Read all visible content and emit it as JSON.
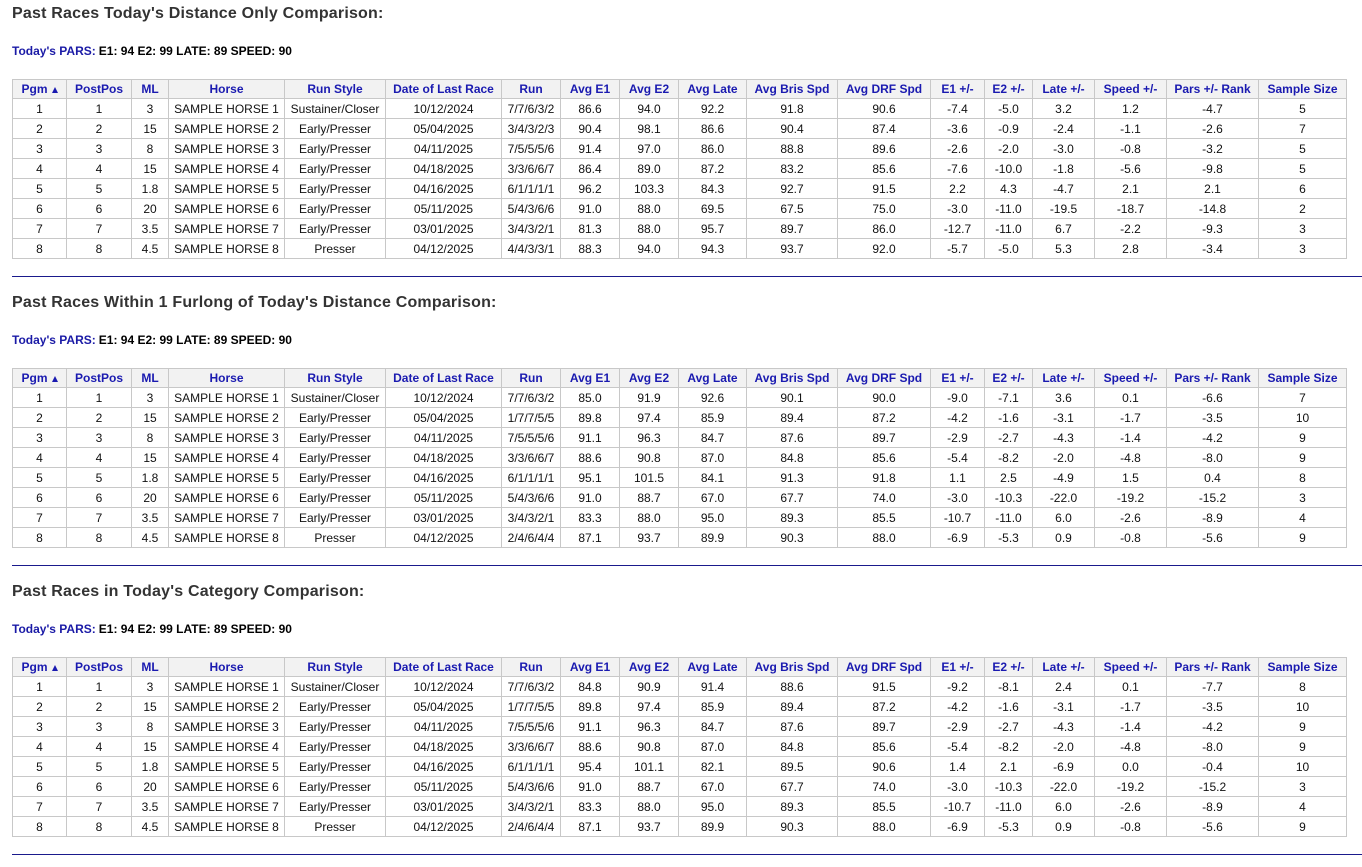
{
  "sections": [
    {
      "title": "Past Races Today's Distance Only Comparison:",
      "pars_label": "Today's PARS:",
      "pars": "E1: 94 E2: 99 LATE: 89 SPEED: 90",
      "table": {
        "header": [
          "Pgm",
          "PostPos",
          "ML",
          "Horse",
          "Run Style",
          "Date of Last Race",
          "Run",
          "Avg E1",
          "Avg E2",
          "Avg Late",
          "Avg Bris Spd",
          "Avg DRF Spd",
          "E1 +/-",
          "E2 +/-",
          "Late +/-",
          "Speed +/-",
          "Pars +/- Rank",
          "Sample Size"
        ],
        "rows": [
          [
            "1",
            "1",
            "3",
            "SAMPLE HORSE 1",
            "Sustainer/Closer",
            "10/12/2024",
            "7/7/6/3/2",
            "86.6",
            "94.0",
            "92.2",
            "91.8",
            "90.6",
            "-7.4",
            "-5.0",
            "3.2",
            "1.2",
            "-4.7",
            "5"
          ],
          [
            "2",
            "2",
            "15",
            "SAMPLE HORSE 2",
            "Early/Presser",
            "05/04/2025",
            "3/4/3/2/3",
            "90.4",
            "98.1",
            "86.6",
            "90.4",
            "87.4",
            "-3.6",
            "-0.9",
            "-2.4",
            "-1.1",
            "-2.6",
            "7"
          ],
          [
            "3",
            "3",
            "8",
            "SAMPLE HORSE 3",
            "Early/Presser",
            "04/11/2025",
            "7/5/5/5/6",
            "91.4",
            "97.0",
            "86.0",
            "88.8",
            "89.6",
            "-2.6",
            "-2.0",
            "-3.0",
            "-0.8",
            "-3.2",
            "5"
          ],
          [
            "4",
            "4",
            "15",
            "SAMPLE HORSE 4",
            "Early/Presser",
            "04/18/2025",
            "3/3/6/6/7",
            "86.4",
            "89.0",
            "87.2",
            "83.2",
            "85.6",
            "-7.6",
            "-10.0",
            "-1.8",
            "-5.6",
            "-9.8",
            "5"
          ],
          [
            "5",
            "5",
            "1.8",
            "SAMPLE HORSE 5",
            "Early/Presser",
            "04/16/2025",
            "6/1/1/1/1",
            "96.2",
            "103.3",
            "84.3",
            "92.7",
            "91.5",
            "2.2",
            "4.3",
            "-4.7",
            "2.1",
            "2.1",
            "6"
          ],
          [
            "6",
            "6",
            "20",
            "SAMPLE HORSE 6",
            "Early/Presser",
            "05/11/2025",
            "5/4/3/6/6",
            "91.0",
            "88.0",
            "69.5",
            "67.5",
            "75.0",
            "-3.0",
            "-11.0",
            "-19.5",
            "-18.7",
            "-14.8",
            "2"
          ],
          [
            "7",
            "7",
            "3.5",
            "SAMPLE HORSE 7",
            "Early/Presser",
            "03/01/2025",
            "3/4/3/2/1",
            "81.3",
            "88.0",
            "95.7",
            "89.7",
            "86.0",
            "-12.7",
            "-11.0",
            "6.7",
            "-2.2",
            "-9.3",
            "3"
          ],
          [
            "8",
            "8",
            "4.5",
            "SAMPLE HORSE 8",
            "Presser",
            "04/12/2025",
            "4/4/3/3/1",
            "88.3",
            "94.0",
            "94.3",
            "93.7",
            "92.0",
            "-5.7",
            "-5.0",
            "5.3",
            "2.8",
            "-3.4",
            "3"
          ]
        ]
      }
    },
    {
      "title": "Past Races Within 1 Furlong of Today's Distance Comparison:",
      "pars_label": "Today's PARS:",
      "pars": "E1: 94 E2: 99 LATE: 89 SPEED: 90",
      "table": {
        "header": [
          "Pgm",
          "PostPos",
          "ML",
          "Horse",
          "Run Style",
          "Date of Last Race",
          "Run",
          "Avg E1",
          "Avg E2",
          "Avg Late",
          "Avg Bris Spd",
          "Avg DRF Spd",
          "E1 +/-",
          "E2 +/-",
          "Late +/-",
          "Speed +/-",
          "Pars +/- Rank",
          "Sample Size"
        ],
        "rows": [
          [
            "1",
            "1",
            "3",
            "SAMPLE HORSE 1",
            "Sustainer/Closer",
            "10/12/2024",
            "7/7/6/3/2",
            "85.0",
            "91.9",
            "92.6",
            "90.1",
            "90.0",
            "-9.0",
            "-7.1",
            "3.6",
            "0.1",
            "-6.6",
            "7"
          ],
          [
            "2",
            "2",
            "15",
            "SAMPLE HORSE 2",
            "Early/Presser",
            "05/04/2025",
            "1/7/7/5/5",
            "89.8",
            "97.4",
            "85.9",
            "89.4",
            "87.2",
            "-4.2",
            "-1.6",
            "-3.1",
            "-1.7",
            "-3.5",
            "10"
          ],
          [
            "3",
            "3",
            "8",
            "SAMPLE HORSE 3",
            "Early/Presser",
            "04/11/2025",
            "7/5/5/5/6",
            "91.1",
            "96.3",
            "84.7",
            "87.6",
            "89.7",
            "-2.9",
            "-2.7",
            "-4.3",
            "-1.4",
            "-4.2",
            "9"
          ],
          [
            "4",
            "4",
            "15",
            "SAMPLE HORSE 4",
            "Early/Presser",
            "04/18/2025",
            "3/3/6/6/7",
            "88.6",
            "90.8",
            "87.0",
            "84.8",
            "85.6",
            "-5.4",
            "-8.2",
            "-2.0",
            "-4.8",
            "-8.0",
            "9"
          ],
          [
            "5",
            "5",
            "1.8",
            "SAMPLE HORSE 5",
            "Early/Presser",
            "04/16/2025",
            "6/1/1/1/1",
            "95.1",
            "101.5",
            "84.1",
            "91.3",
            "91.8",
            "1.1",
            "2.5",
            "-4.9",
            "1.5",
            "0.4",
            "8"
          ],
          [
            "6",
            "6",
            "20",
            "SAMPLE HORSE 6",
            "Early/Presser",
            "05/11/2025",
            "5/4/3/6/6",
            "91.0",
            "88.7",
            "67.0",
            "67.7",
            "74.0",
            "-3.0",
            "-10.3",
            "-22.0",
            "-19.2",
            "-15.2",
            "3"
          ],
          [
            "7",
            "7",
            "3.5",
            "SAMPLE HORSE 7",
            "Early/Presser",
            "03/01/2025",
            "3/4/3/2/1",
            "83.3",
            "88.0",
            "95.0",
            "89.3",
            "85.5",
            "-10.7",
            "-11.0",
            "6.0",
            "-2.6",
            "-8.9",
            "4"
          ],
          [
            "8",
            "8",
            "4.5",
            "SAMPLE HORSE 8",
            "Presser",
            "04/12/2025",
            "2/4/6/4/4",
            "87.1",
            "93.7",
            "89.9",
            "90.3",
            "88.0",
            "-6.9",
            "-5.3",
            "0.9",
            "-0.8",
            "-5.6",
            "9"
          ]
        ]
      }
    },
    {
      "title": "Past Races in Today's Category Comparison:",
      "pars_label": "Today's PARS:",
      "pars": "E1: 94 E2: 99 LATE: 89 SPEED: 90",
      "table": {
        "header": [
          "Pgm",
          "PostPos",
          "ML",
          "Horse",
          "Run Style",
          "Date of Last Race",
          "Run",
          "Avg E1",
          "Avg E2",
          "Avg Late",
          "Avg Bris Spd",
          "Avg DRF Spd",
          "E1 +/-",
          "E2 +/-",
          "Late +/-",
          "Speed +/-",
          "Pars +/- Rank",
          "Sample Size"
        ],
        "rows": [
          [
            "1",
            "1",
            "3",
            "SAMPLE HORSE 1",
            "Sustainer/Closer",
            "10/12/2024",
            "7/7/6/3/2",
            "84.8",
            "90.9",
            "91.4",
            "88.6",
            "91.5",
            "-9.2",
            "-8.1",
            "2.4",
            "0.1",
            "-7.7",
            "8"
          ],
          [
            "2",
            "2",
            "15",
            "SAMPLE HORSE 2",
            "Early/Presser",
            "05/04/2025",
            "1/7/7/5/5",
            "89.8",
            "97.4",
            "85.9",
            "89.4",
            "87.2",
            "-4.2",
            "-1.6",
            "-3.1",
            "-1.7",
            "-3.5",
            "10"
          ],
          [
            "3",
            "3",
            "8",
            "SAMPLE HORSE 3",
            "Early/Presser",
            "04/11/2025",
            "7/5/5/5/6",
            "91.1",
            "96.3",
            "84.7",
            "87.6",
            "89.7",
            "-2.9",
            "-2.7",
            "-4.3",
            "-1.4",
            "-4.2",
            "9"
          ],
          [
            "4",
            "4",
            "15",
            "SAMPLE HORSE 4",
            "Early/Presser",
            "04/18/2025",
            "3/3/6/6/7",
            "88.6",
            "90.8",
            "87.0",
            "84.8",
            "85.6",
            "-5.4",
            "-8.2",
            "-2.0",
            "-4.8",
            "-8.0",
            "9"
          ],
          [
            "5",
            "5",
            "1.8",
            "SAMPLE HORSE 5",
            "Early/Presser",
            "04/16/2025",
            "6/1/1/1/1",
            "95.4",
            "101.1",
            "82.1",
            "89.5",
            "90.6",
            "1.4",
            "2.1",
            "-6.9",
            "0.0",
            "-0.4",
            "10"
          ],
          [
            "6",
            "6",
            "20",
            "SAMPLE HORSE 6",
            "Early/Presser",
            "05/11/2025",
            "5/4/3/6/6",
            "91.0",
            "88.7",
            "67.0",
            "67.7",
            "74.0",
            "-3.0",
            "-10.3",
            "-22.0",
            "-19.2",
            "-15.2",
            "3"
          ],
          [
            "7",
            "7",
            "3.5",
            "SAMPLE HORSE 7",
            "Early/Presser",
            "03/01/2025",
            "3/4/3/2/1",
            "83.3",
            "88.0",
            "95.0",
            "89.3",
            "85.5",
            "-10.7",
            "-11.0",
            "6.0",
            "-2.6",
            "-8.9",
            "4"
          ],
          [
            "8",
            "8",
            "4.5",
            "SAMPLE HORSE 8",
            "Presser",
            "04/12/2025",
            "2/4/6/4/4",
            "87.1",
            "93.7",
            "89.9",
            "90.3",
            "88.0",
            "-6.9",
            "-5.3",
            "0.9",
            "-0.8",
            "-5.6",
            "9"
          ]
        ]
      }
    }
  ]
}
